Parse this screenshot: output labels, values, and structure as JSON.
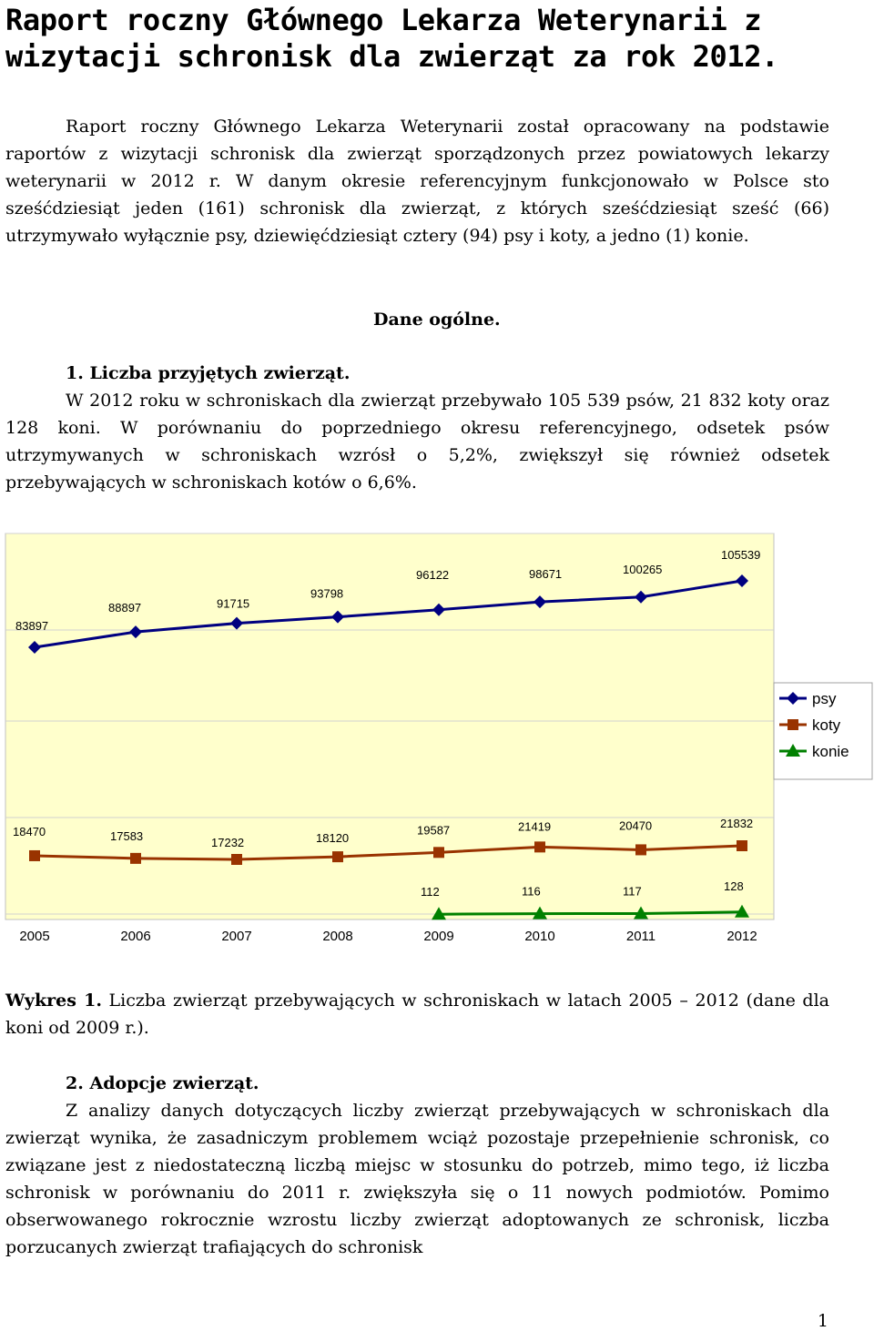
{
  "title": "Raport roczny Głównego Lekarza Weterynarii z wizytacji schronisk dla zwierząt za rok 2012.",
  "intro": "Raport roczny Głównego Lekarza Weterynarii został opracowany na podstawie raportów z wizytacji schronisk dla zwierząt sporządzonych przez powiatowych lekarzy weterynarii w 2012 r. W danym okresie referencyjnym funkcjonowało w Polsce sto sześćdziesiąt jeden (161) schronisk dla zwierząt, z których sześćdziesiąt sześć (66) utrzymywało wyłącznie psy, dziewięćdziesiąt cztery (94) psy i koty, a jedno (1) konie.",
  "section_heading": "Dane ogólne.",
  "sub1": "1. Liczba przyjętych zwierząt.",
  "para1": "W 2012 roku w schroniskach dla zwierząt przebywało 105 539 psów, 21 832 koty oraz 128 koni. W porównaniu do poprzedniego okresu referencyjnego, odsetek psów utrzymywanych w schroniskach wzrósł o 5,2%, zwiększył się również odsetek przebywających w schroniskach kotów o 6,6%.",
  "caption_label": "Wykres 1.",
  "caption_text": " Liczba zwierząt przebywających w schroniskach w latach 2005 – 2012 (dane dla koni od 2009 r.).",
  "sub2": "2. Adopcje zwierząt.",
  "para2": "Z analizy danych dotyczących liczby zwierząt przebywających w schroniskach dla zwierząt wynika, że zasadniczym problemem wciąż pozostaje przepełnienie schronisk, co związane jest z niedostateczną liczbą miejsc w stosunku do potrzeb, mimo tego, iż liczba schronisk w porównaniu do 2011 r. zwiększyła się o 11 nowych podmiotów. Pomimo obserwowanego rokrocznie wzrostu liczby zwierząt adoptowanych ze schronisk, liczba porzucanych zwierząt trafiających do schronisk",
  "page_number": "1",
  "chart_data": {
    "type": "line",
    "categories": [
      "2005",
      "2006",
      "2007",
      "2008",
      "2009",
      "2010",
      "2011",
      "2012"
    ],
    "series": [
      {
        "name": "psy",
        "color": "#000080",
        "marker": "diamond",
        "values": [
          83897,
          88897,
          91715,
          93798,
          96122,
          98671,
          100265,
          105539
        ]
      },
      {
        "name": "koty",
        "color": "#993300",
        "marker": "square",
        "values": [
          18470,
          17583,
          17232,
          18120,
          19587,
          21419,
          20470,
          21832
        ]
      },
      {
        "name": "konie",
        "color": "#008000",
        "marker": "triangle",
        "values": [
          null,
          null,
          null,
          null,
          112,
          116,
          117,
          128
        ]
      }
    ],
    "legend": "right",
    "grid": true,
    "background": "#ffffcc"
  }
}
